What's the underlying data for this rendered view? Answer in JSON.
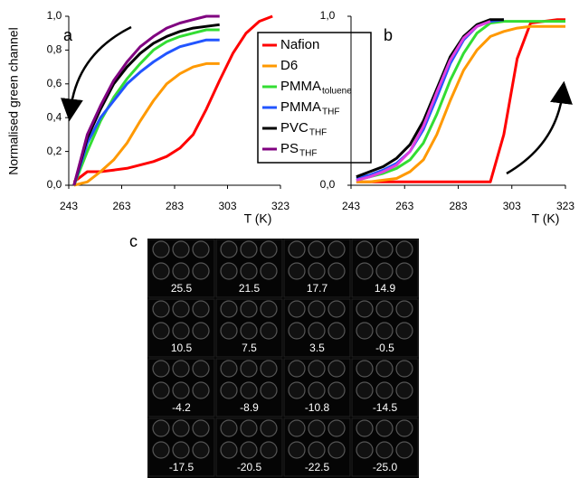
{
  "chart_data": [
    {
      "type": "line",
      "annotation": "a",
      "ylabel": "Normalised green channel",
      "xlabel": "T (K)",
      "xlim": [
        243,
        323
      ],
      "xticks": [
        243,
        263,
        283,
        303,
        323
      ],
      "ylim": [
        0,
        1
      ],
      "yticks": [
        {
          "value": 0,
          "label": "0,0"
        },
        {
          "value": 0.2,
          "label": "0,2"
        },
        {
          "value": 0.4,
          "label": "0,4"
        },
        {
          "value": 0.6,
          "label": "0,6"
        },
        {
          "value": 0.8,
          "label": "0,8"
        },
        {
          "value": 1,
          "label": "1,0"
        }
      ],
      "x": [
        245,
        250,
        255,
        260,
        265,
        270,
        275,
        280,
        285,
        290,
        295,
        300,
        305,
        310,
        315,
        320
      ],
      "series": [
        {
          "name": "Nafion",
          "color": "#ff0000",
          "values": [
            0.02,
            0.08,
            0.08,
            0.09,
            0.1,
            0.12,
            0.14,
            0.17,
            0.22,
            0.3,
            0.45,
            0.62,
            0.78,
            0.9,
            0.97,
            1.0
          ]
        },
        {
          "name": "D6",
          "color": "#ff9900",
          "values": [
            0.0,
            0.02,
            0.08,
            0.15,
            0.25,
            0.38,
            0.5,
            0.6,
            0.66,
            0.7,
            0.72,
            0.72,
            null,
            null,
            null,
            null
          ]
        },
        {
          "name": "PMMA",
          "name_sub": "toluene",
          "color": "#33dd33",
          "values": [
            0.0,
            0.2,
            0.38,
            0.52,
            0.63,
            0.72,
            0.8,
            0.85,
            0.88,
            0.9,
            0.92,
            0.92,
            null,
            null,
            null,
            null
          ]
        },
        {
          "name": "PMMA",
          "name_sub": "THF",
          "color": "#2255ff",
          "values": [
            0.0,
            0.25,
            0.4,
            0.5,
            0.6,
            0.67,
            0.73,
            0.78,
            0.82,
            0.84,
            0.86,
            0.86,
            null,
            null,
            null,
            null
          ]
        },
        {
          "name": "PVC",
          "name_sub": "THF",
          "color": "#000000",
          "values": [
            0.0,
            0.28,
            0.45,
            0.6,
            0.7,
            0.78,
            0.84,
            0.88,
            0.91,
            0.93,
            0.94,
            0.95,
            null,
            null,
            null,
            null
          ]
        },
        {
          "name": "PS",
          "name_sub": "THF",
          "color": "#800080",
          "values": [
            0.0,
            0.3,
            0.47,
            0.62,
            0.73,
            0.82,
            0.88,
            0.93,
            0.96,
            0.98,
            1.0,
            1.0,
            null,
            null,
            null,
            null
          ]
        }
      ]
    },
    {
      "type": "line",
      "annotation": "b",
      "xlabel": "T (K)",
      "xlim": [
        243,
        323
      ],
      "xticks": [
        243,
        263,
        283,
        303,
        323
      ],
      "ylim": [
        0,
        1
      ],
      "yticks": [
        {
          "value": 0,
          "label": "0,0"
        },
        {
          "value": 1,
          "label": "1,0"
        }
      ],
      "x": [
        245,
        250,
        255,
        260,
        265,
        270,
        275,
        280,
        285,
        290,
        295,
        300,
        305,
        310,
        315,
        320,
        323
      ],
      "series": [
        {
          "color": "#ff0000",
          "values": [
            0.02,
            0.02,
            0.02,
            0.02,
            0.02,
            0.02,
            0.02,
            0.02,
            0.02,
            0.02,
            0.02,
            0.3,
            0.75,
            0.96,
            0.97,
            0.98,
            0.98
          ]
        },
        {
          "color": "#ff9900",
          "values": [
            0.02,
            0.02,
            0.03,
            0.04,
            0.08,
            0.15,
            0.3,
            0.5,
            0.68,
            0.8,
            0.88,
            0.91,
            0.93,
            0.94,
            0.94,
            0.94,
            0.94
          ]
        },
        {
          "color": "#33dd33",
          "values": [
            0.03,
            0.05,
            0.07,
            0.1,
            0.15,
            0.25,
            0.42,
            0.62,
            0.78,
            0.9,
            0.96,
            0.97,
            0.97,
            0.97,
            0.97,
            0.97,
            0.97
          ]
        },
        {
          "color": "#2255ff",
          "values": [
            0.04,
            0.06,
            0.09,
            0.13,
            0.2,
            0.33,
            0.52,
            0.72,
            0.86,
            0.94,
            0.97,
            0.98,
            null,
            null,
            null,
            null,
            null
          ]
        },
        {
          "color": "#000000",
          "values": [
            0.05,
            0.08,
            0.11,
            0.16,
            0.24,
            0.38,
            0.57,
            0.76,
            0.88,
            0.95,
            0.98,
            0.98,
            null,
            null,
            null,
            null,
            null
          ]
        },
        {
          "color": "#e040e0",
          "values": [
            0.03,
            0.05,
            0.08,
            0.12,
            0.2,
            0.35,
            0.55,
            0.74,
            0.87,
            0.94,
            0.97,
            null,
            null,
            null,
            null,
            null,
            null
          ]
        }
      ]
    }
  ],
  "panel_c": {
    "label": "c",
    "labels": [
      "25.5",
      "21.5",
      "17.7",
      "14.9",
      "10.5",
      "7.5",
      "3.5",
      "-0.5",
      "-4.2",
      "-8.9",
      "-10.8",
      "-14.5",
      "-17.5",
      "-20.5",
      "-22.5",
      "-25.0"
    ]
  }
}
